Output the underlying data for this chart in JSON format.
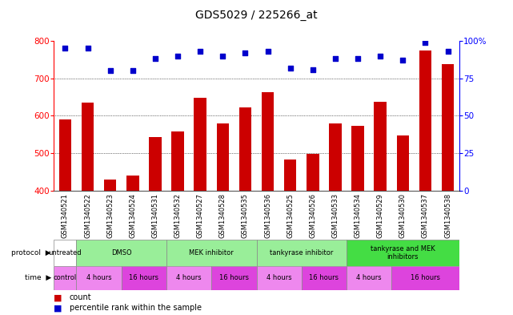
{
  "title": "GDS5029 / 225266_at",
  "samples": [
    "GSM1340521",
    "GSM1340522",
    "GSM1340523",
    "GSM1340524",
    "GSM1340531",
    "GSM1340532",
    "GSM1340527",
    "GSM1340528",
    "GSM1340535",
    "GSM1340536",
    "GSM1340525",
    "GSM1340526",
    "GSM1340533",
    "GSM1340534",
    "GSM1340529",
    "GSM1340530",
    "GSM1340537",
    "GSM1340538"
  ],
  "bar_values": [
    590,
    635,
    430,
    440,
    543,
    558,
    648,
    580,
    623,
    662,
    483,
    498,
    580,
    572,
    638,
    547,
    775,
    738
  ],
  "percentile_values": [
    95,
    95,
    80,
    80,
    88,
    90,
    93,
    90,
    92,
    93,
    82,
    81,
    88,
    88,
    90,
    87,
    99,
    93
  ],
  "bar_color": "#cc0000",
  "dot_color": "#0000cc",
  "ylim_left": [
    400,
    800
  ],
  "ylim_right": [
    0,
    100
  ],
  "yticks_left": [
    400,
    500,
    600,
    700,
    800
  ],
  "yticks_right": [
    0,
    25,
    50,
    75,
    100
  ],
  "grid_values": [
    500,
    600,
    700
  ],
  "protocol_spans": [
    {
      "start": 0,
      "end": 1,
      "label": "untreated",
      "color": "#ffffff"
    },
    {
      "start": 1,
      "end": 5,
      "label": "DMSO",
      "color": "#99ee99"
    },
    {
      "start": 5,
      "end": 9,
      "label": "MEK inhibitor",
      "color": "#99ee99"
    },
    {
      "start": 9,
      "end": 13,
      "label": "tankyrase inhibitor",
      "color": "#99ee99"
    },
    {
      "start": 13,
      "end": 18,
      "label": "tankyrase and MEK\ninhibitors",
      "color": "#44dd44"
    }
  ],
  "time_spans": [
    {
      "start": 0,
      "end": 1,
      "label": "control",
      "color": "#ee88ee"
    },
    {
      "start": 1,
      "end": 3,
      "label": "4 hours",
      "color": "#ee88ee"
    },
    {
      "start": 3,
      "end": 5,
      "label": "16 hours",
      "color": "#dd44dd"
    },
    {
      "start": 5,
      "end": 7,
      "label": "4 hours",
      "color": "#ee88ee"
    },
    {
      "start": 7,
      "end": 9,
      "label": "16 hours",
      "color": "#dd44dd"
    },
    {
      "start": 9,
      "end": 11,
      "label": "4 hours",
      "color": "#ee88ee"
    },
    {
      "start": 11,
      "end": 13,
      "label": "16 hours",
      "color": "#dd44dd"
    },
    {
      "start": 13,
      "end": 15,
      "label": "4 hours",
      "color": "#ee88ee"
    },
    {
      "start": 15,
      "end": 18,
      "label": "16 hours",
      "color": "#dd44dd"
    }
  ],
  "background_color": "#ffffff",
  "label_bg_color": "#dddddd",
  "legend_count_color": "#cc0000",
  "legend_pct_color": "#0000cc"
}
